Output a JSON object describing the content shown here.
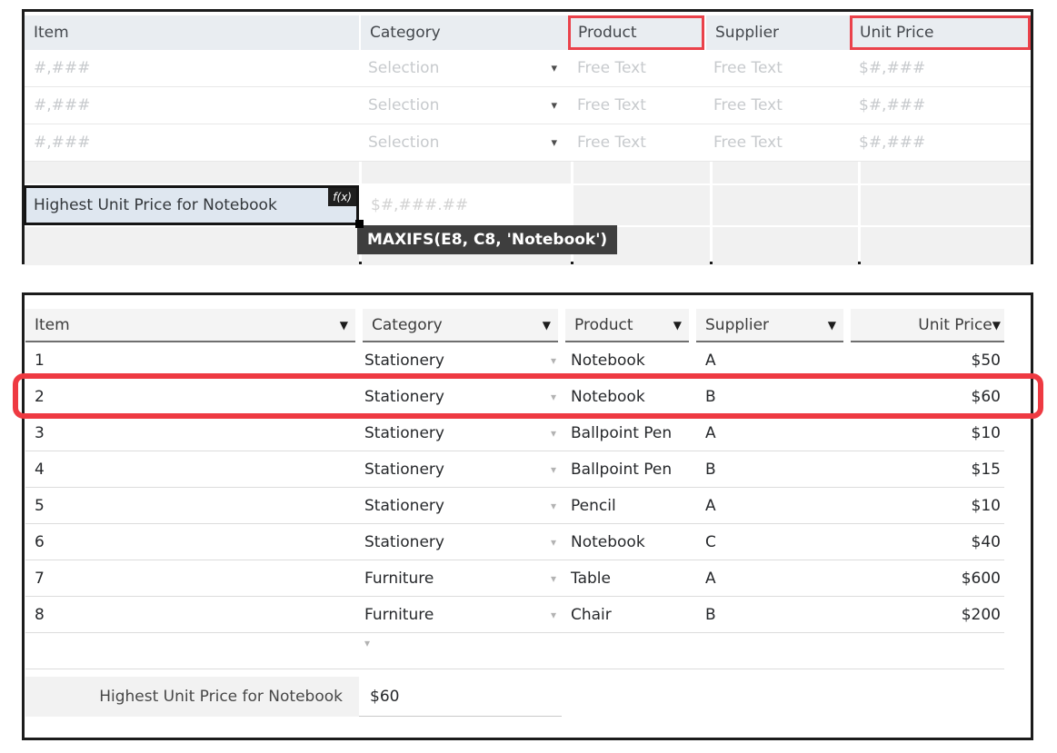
{
  "icons": {
    "dropdown_arrow": "▼",
    "small_dropdown_arrow": "▾",
    "fx_badge": "f(x)"
  },
  "colors": {
    "annotation_red": "#ea424b",
    "tooltip_bg": "#3e3e3e",
    "formula_cell_bg": "#dfe7f0",
    "template_header_bg": "#e9edf1",
    "result_header_bg": "#f4f4f4"
  },
  "template_panel": {
    "headers": [
      {
        "label": "Item"
      },
      {
        "label": "Category"
      },
      {
        "label": "Product"
      },
      {
        "label": "Supplier"
      },
      {
        "label": "Unit Price"
      }
    ],
    "placeholder_rows": [
      {
        "item": "#,###",
        "category": "Selection",
        "product": "Free Text",
        "supplier": "Free Text",
        "unit_price": "$#,###"
      },
      {
        "item": "#,###",
        "category": "Selection",
        "product": "Free Text",
        "supplier": "Free Text",
        "unit_price": "$#,###"
      },
      {
        "item": "#,###",
        "category": "Selection",
        "product": "Free Text",
        "supplier": "Free Text",
        "unit_price": "$#,###"
      }
    ],
    "formula_row": {
      "label": "Highest Unit Price for Notebook",
      "fx_badge": "f(x)",
      "value_placeholder": "$#,###.##",
      "formula_tooltip": "MAXIFS(E8, C8, 'Notebook')"
    }
  },
  "result_panel": {
    "headers": [
      {
        "label": "Item"
      },
      {
        "label": "Category"
      },
      {
        "label": "Product"
      },
      {
        "label": "Supplier"
      },
      {
        "label": "Unit Price"
      }
    ],
    "rows": [
      {
        "item": "1",
        "category": "Stationery",
        "product": "Notebook",
        "supplier": "A",
        "unit_price": "$50"
      },
      {
        "item": "2",
        "category": "Stationery",
        "product": "Notebook",
        "supplier": "B",
        "unit_price": "$60"
      },
      {
        "item": "3",
        "category": "Stationery",
        "product": "Ballpoint Pen",
        "supplier": "A",
        "unit_price": "$10"
      },
      {
        "item": "4",
        "category": "Stationery",
        "product": "Ballpoint Pen",
        "supplier": "B",
        "unit_price": "$15"
      },
      {
        "item": "5",
        "category": "Stationery",
        "product": "Pencil",
        "supplier": "A",
        "unit_price": "$10"
      },
      {
        "item": "6",
        "category": "Stationery",
        "product": "Notebook",
        "supplier": "C",
        "unit_price": "$40"
      },
      {
        "item": "7",
        "category": "Furniture",
        "product": "Table",
        "supplier": "A",
        "unit_price": "$600"
      },
      {
        "item": "8",
        "category": "Furniture",
        "product": "Chair",
        "supplier": "B",
        "unit_price": "$200"
      }
    ],
    "summary_row": {
      "label": "Highest Unit Price for Notebook",
      "value": "$60"
    }
  }
}
